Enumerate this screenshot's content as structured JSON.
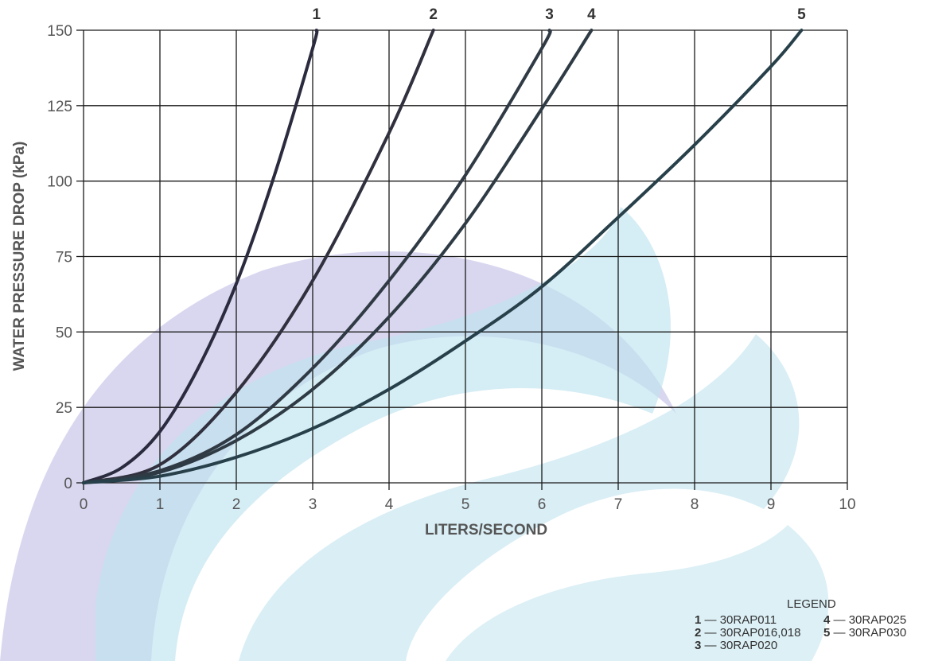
{
  "chart_data": {
    "type": "line",
    "xlabel": "LITERS/SECOND",
    "ylabel": "WATER PRESSURE DROP (kPa)",
    "xlim": [
      0,
      10
    ],
    "ylim": [
      0,
      150
    ],
    "x_ticks": [
      "0",
      "1",
      "2",
      "3",
      "4",
      "5",
      "6",
      "7",
      "8",
      "9",
      "10"
    ],
    "y_ticks": [
      "0",
      "25",
      "50",
      "75",
      "100",
      "125",
      "150"
    ],
    "grid": true,
    "series": [
      {
        "name": "1",
        "x": [
          0,
          0.5,
          1,
          1.5,
          2,
          2.5,
          3,
          3.05
        ],
        "y": [
          0,
          5,
          17,
          38,
          66,
          102,
          144,
          150
        ],
        "color": "#2b2b3f"
      },
      {
        "name": "2",
        "x": [
          0,
          1,
          2,
          3,
          4,
          4.58
        ],
        "y": [
          0,
          6,
          30,
          67,
          116,
          150
        ],
        "color": "#30303e"
      },
      {
        "name": "3",
        "x": [
          0,
          1,
          2,
          3,
          4,
          5,
          6,
          6.1
        ],
        "y": [
          0,
          4,
          16,
          38,
          67,
          102,
          144,
          150
        ],
        "color": "#303a44"
      },
      {
        "name": "4",
        "x": [
          0,
          1,
          2,
          3,
          4,
          5,
          6,
          6.65
        ],
        "y": [
          0,
          3.5,
          14,
          31,
          55,
          86,
          124,
          150
        ],
        "color": "#2f3b44"
      },
      {
        "name": "5",
        "x": [
          0,
          1,
          2,
          3,
          4,
          5,
          6,
          7,
          8,
          9,
          9.4
        ],
        "y": [
          0,
          2.2,
          8.5,
          18,
          31,
          47,
          65,
          88,
          112,
          138,
          150
        ],
        "color": "#27404a"
      }
    ],
    "legend": {
      "title": "LEGEND",
      "placement": "bottom-right",
      "entries": [
        {
          "key": "1",
          "label": "30RAP011"
        },
        {
          "key": "2",
          "label": "30RAP016,018"
        },
        {
          "key": "3",
          "label": "30RAP020"
        },
        {
          "key": "4",
          "label": "30RAP025"
        },
        {
          "key": "5",
          "label": "30RAP030"
        }
      ]
    }
  }
}
